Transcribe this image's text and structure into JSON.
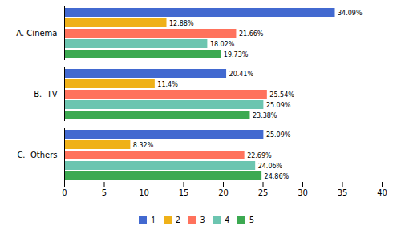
{
  "chart_data": {
    "type": "bar",
    "orientation": "horizontal",
    "categories": [
      "A. Cinema",
      "B.  TV",
      "C.  Others"
    ],
    "series": [
      {
        "name": "1",
        "values": [
          34.09,
          20.41,
          25.09
        ],
        "value_labels": [
          "34.09%",
          "20.41%",
          "25.09%"
        ]
      },
      {
        "name": "2",
        "values": [
          12.88,
          11.4,
          8.32
        ],
        "value_labels": [
          "12.88%",
          "11.4%",
          "8.32%"
        ]
      },
      {
        "name": "3",
        "values": [
          21.66,
          25.54,
          22.69
        ],
        "value_labels": [
          "21.66%",
          "25.54%",
          "22.69%"
        ]
      },
      {
        "name": "4",
        "values": [
          18.02,
          25.09,
          24.06
        ],
        "value_labels": [
          "18.02%",
          "25.09%",
          "24.06%"
        ]
      },
      {
        "name": "5",
        "values": [
          19.73,
          23.38,
          24.86
        ],
        "value_labels": [
          "19.73%",
          "23.38%",
          "24.86%"
        ]
      }
    ],
    "xlim": [
      0,
      40
    ],
    "xticks": [
      0,
      5,
      10,
      15,
      20,
      25,
      30,
      35,
      40
    ],
    "data_labels": true,
    "grid": false,
    "legend": "bottom"
  }
}
